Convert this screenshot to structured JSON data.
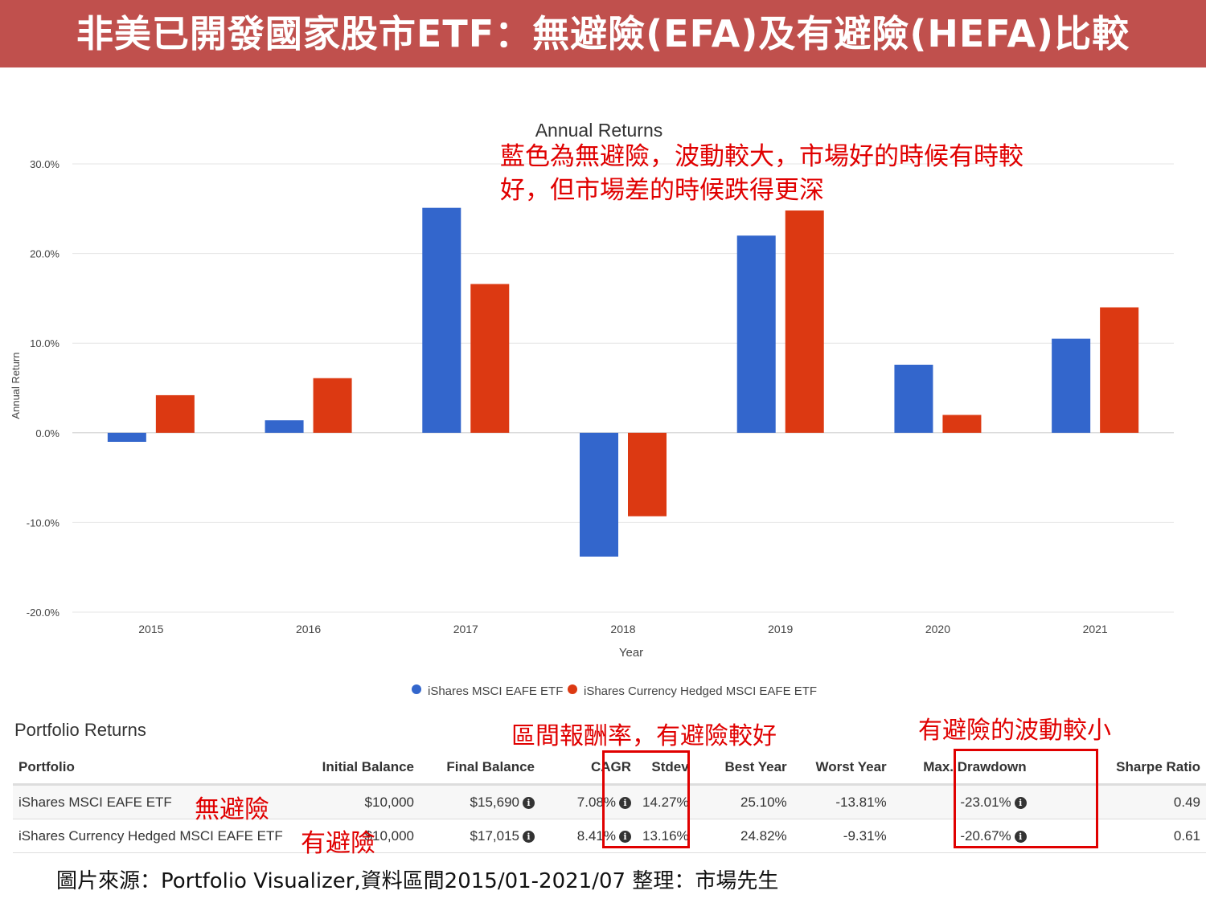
{
  "banner": {
    "title": "非美已開發國家股市ETF：無避險(EFA)及有避險(HEFA)比較"
  },
  "chart_data": {
    "type": "bar",
    "title": "Annual Returns",
    "xlabel": "Year",
    "ylabel": "Annual Return",
    "categories": [
      "2015",
      "2016",
      "2017",
      "2018",
      "2019",
      "2020",
      "2021"
    ],
    "series": [
      {
        "name": "iShares MSCI EAFE ETF",
        "color": "#3366cc",
        "values": [
          -1.0,
          1.4,
          25.1,
          -13.8,
          22.0,
          7.6,
          10.5
        ]
      },
      {
        "name": "iShares Currency Hedged MSCI EAFE ETF",
        "color": "#dc3912",
        "values": [
          4.2,
          6.1,
          16.6,
          -9.3,
          24.8,
          2.0,
          14.0
        ]
      }
    ],
    "ylim": [
      -20,
      30
    ],
    "yticks": [
      "30.0%",
      "20.0%",
      "10.0%",
      "0.0%",
      "-10.0%",
      "-20.0%"
    ],
    "grid": true,
    "legend": "bottom"
  },
  "annotations": {
    "main_line1": "藍色為無避險，波動較大，市場好的時候有時較",
    "main_line2": "好，但市場差的時候跌得更深",
    "cagr": "區間報酬率，有避險較好",
    "drawdown": "有避險的波動較小",
    "row1": "無避險",
    "row2": "有避險"
  },
  "table": {
    "title": "Portfolio Returns",
    "headers": [
      "Portfolio",
      "Initial Balance",
      "Final Balance",
      "CAGR",
      "Stdev",
      "Best Year",
      "Worst Year",
      "Max. Drawdown",
      "Sharpe Ratio"
    ],
    "rows": [
      [
        "iShares MSCI EAFE ETF",
        "$10,000",
        "$15,690",
        "7.08%",
        "14.27%",
        "25.10%",
        "-13.81%",
        "-23.01%",
        "0.49"
      ],
      [
        "iShares Currency Hedged MSCI EAFE ETF",
        "$10,000",
        "$17,015",
        "8.41%",
        "13.16%",
        "24.82%",
        "-9.31%",
        "-20.67%",
        "0.61"
      ]
    ],
    "info_icon": "i"
  },
  "footer": {
    "source": "圖片來源：Portfolio Visualizer,資料區間2015/01-2021/07   整理：市場先生"
  }
}
